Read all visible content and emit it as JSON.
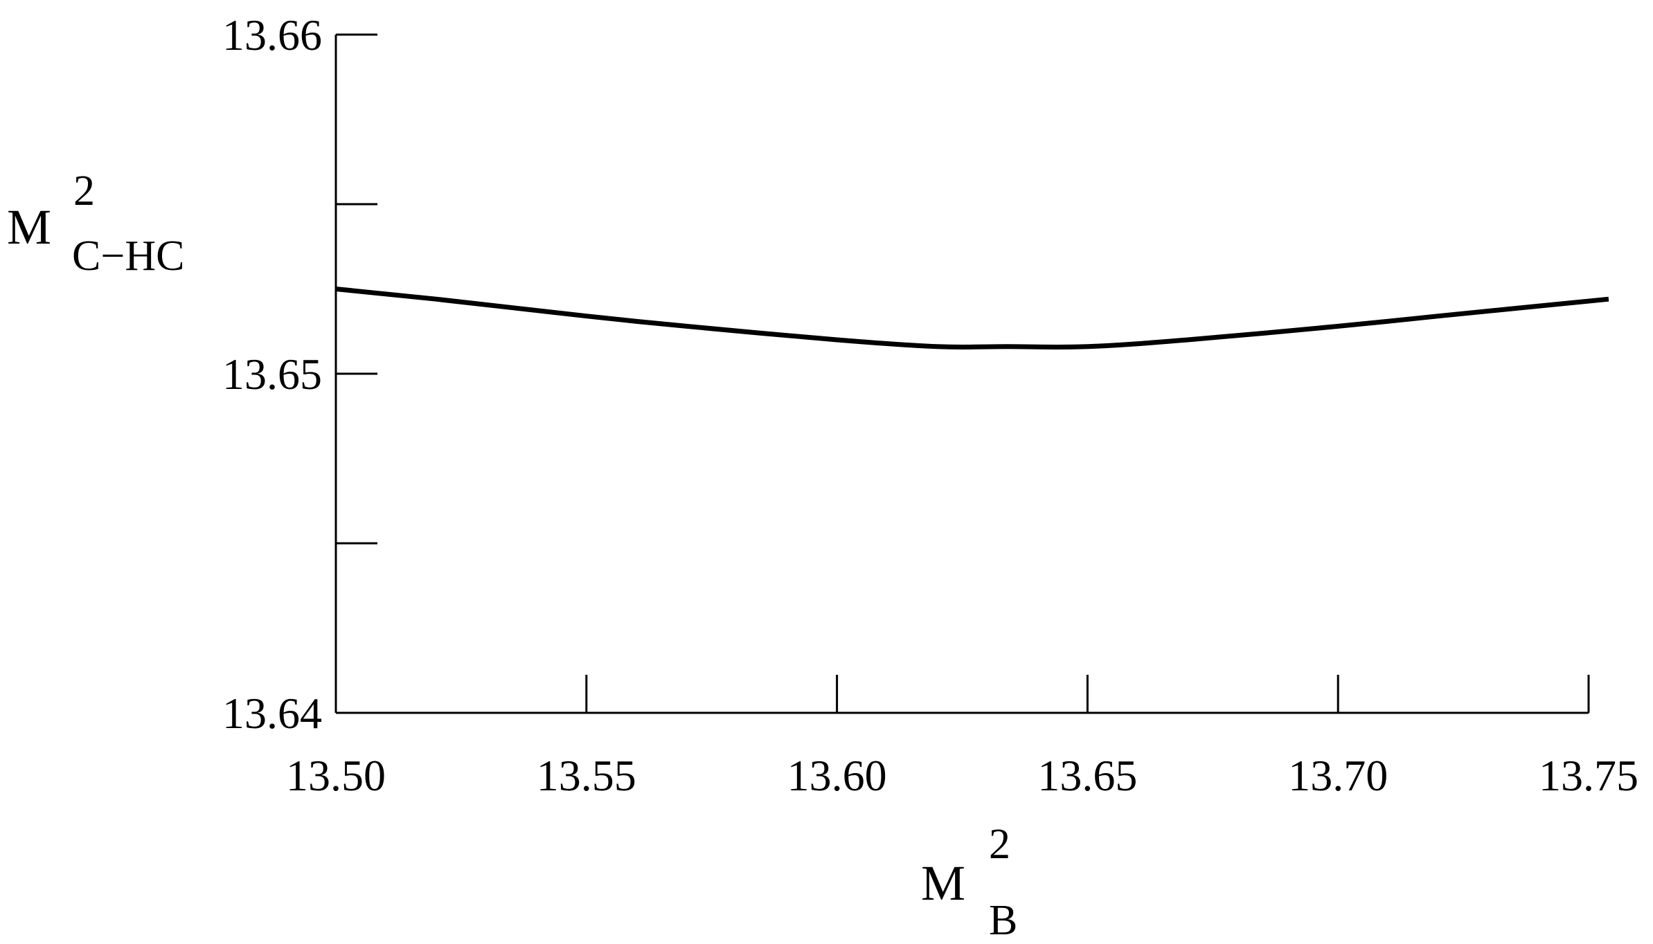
{
  "chart_data": {
    "type": "line",
    "title": "",
    "xlabel": {
      "base": "M",
      "sup": "2",
      "sub": "B"
    },
    "ylabel": {
      "base": "M",
      "sup": "2",
      "sub": "C−HC"
    },
    "xlim": [
      13.5,
      13.75
    ],
    "ylim": [
      13.64,
      13.66
    ],
    "x_ticks": [
      13.5,
      13.55,
      13.6,
      13.65,
      13.7,
      13.75
    ],
    "x_tick_labels": [
      "13.50",
      "13.55",
      "13.60",
      "13.65",
      "13.70",
      "13.75"
    ],
    "y_ticks_major": [
      13.64,
      13.65,
      13.66
    ],
    "y_tick_labels": [
      "13.64",
      "13.65",
      "13.66"
    ],
    "y_ticks_minor": [
      13.645,
      13.655
    ],
    "grid": false,
    "series": [
      {
        "color": "#000000",
        "x": [
          13.5,
          13.52,
          13.55,
          13.57,
          13.6,
          13.62,
          13.634,
          13.65,
          13.67,
          13.7,
          13.72,
          13.754
        ],
        "y": [
          13.6525,
          13.6522,
          13.6517,
          13.6514,
          13.651,
          13.6508,
          13.6508,
          13.6508,
          13.651,
          13.6514,
          13.6517,
          13.6522
        ]
      }
    ]
  }
}
